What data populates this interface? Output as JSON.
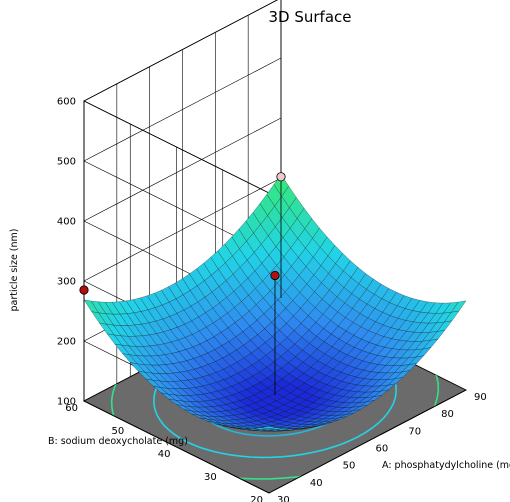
{
  "chart_data": {
    "type": "surface3d",
    "title": "3D Surface",
    "zlabel": "particle size (nm)",
    "xlabel": "A: phosphatydylcholine (mg)",
    "ylabel": "B: sodium deoxycholate (mg)",
    "x_range": [
      30,
      90
    ],
    "y_range": [
      20,
      60
    ],
    "zlim": [
      100,
      600
    ],
    "x_ticks": [
      "30",
      "40",
      "50",
      "60",
      "70",
      "80",
      "90"
    ],
    "y_ticks": [
      "20",
      "30",
      "40",
      "50",
      "60"
    ],
    "z_ticks": [
      "100",
      "200",
      "300",
      "400",
      "500",
      "600"
    ],
    "surface": {
      "description_model": "quadratic",
      "center_x": 60,
      "center_y": 40,
      "min_value": 120,
      "corner_values": {
        "x30_y20": 210,
        "x30_y60": 270,
        "x90_y20": 250,
        "x90_y60": 305
      },
      "colormap": [
        "#1a2ad8",
        "#2f8cf0",
        "#22d4e6",
        "#34e87a",
        "#3fd83a"
      ]
    },
    "design_points": [
      {
        "x": 30,
        "y": 60,
        "z": 285,
        "color": "#b01010"
      },
      {
        "x": 60,
        "y": 40,
        "z": 300,
        "color": "#b01010"
      },
      {
        "x": 90,
        "y": 60,
        "z": 302,
        "color": "#f4c8c8"
      }
    ],
    "floor_contours": {
      "fill": "#6b6b6b",
      "lines": [
        "#2f7bdc",
        "#22b8e0",
        "#22d4e6",
        "#35e08a"
      ]
    },
    "grid": true,
    "colors": {
      "surface_low": "#1a2ad8",
      "surface_high": "#3fd83a",
      "floor": "#6b6b6b"
    }
  }
}
